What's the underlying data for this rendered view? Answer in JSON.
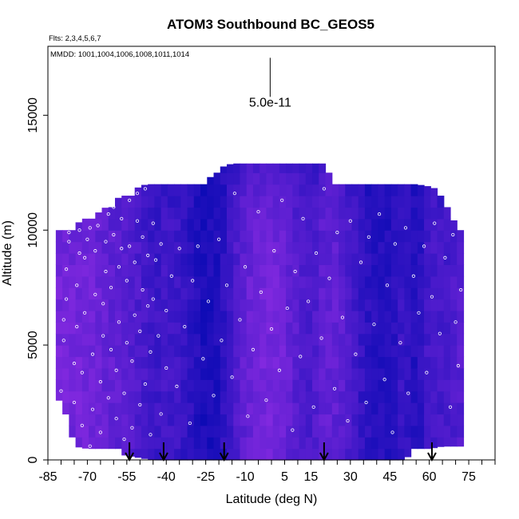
{
  "chart_data": {
    "type": "heatmap",
    "title": "ATOM3 Southbound BC_GEOS5",
    "flights_label": "Flts: 2,3,4,5,6,7",
    "dates_label": "MMDD: 1001,1004,1006,1008,1011,1014",
    "xlabel": "Latitude (deg N)",
    "ylabel": "Altitude (m)",
    "xlim": [
      -85,
      85
    ],
    "ylim": [
      0,
      18000
    ],
    "x_ticks": [
      -85,
      -70,
      -55,
      -40,
      -25,
      -10,
      5,
      15,
      30,
      45,
      60,
      75
    ],
    "x_tick_labels": [
      "-85",
      "-70",
      "-55",
      "-40",
      "-25",
      "-10",
      "5",
      "15",
      "30",
      "45",
      "60",
      "75"
    ],
    "y_ticks": [
      0,
      5000,
      10000,
      15000
    ],
    "y_tick_labels": [
      "0",
      "5000",
      "10000",
      "15000"
    ],
    "scale_value_label": "5.0e-11",
    "scale_bar": {
      "x": -0.5,
      "y_bottom": 15800,
      "y_top": 17500
    },
    "profile_arrows_lat": [
      -54,
      -41,
      -18,
      20,
      61
    ],
    "colors": {
      "low": "#0a0ab4",
      "high": "#8a2be2",
      "points": "#ffffff"
    },
    "column_tops": [
      [
        -80,
        10000
      ],
      [
        -75,
        10200
      ],
      [
        -70,
        10600
      ],
      [
        -65,
        10800
      ],
      [
        -60,
        11300
      ],
      [
        -55,
        11600
      ],
      [
        -50,
        11900
      ],
      [
        -45,
        12100
      ],
      [
        -40,
        12100
      ],
      [
        -35,
        12100
      ],
      [
        -30,
        12100
      ],
      [
        -25,
        12100
      ],
      [
        -20,
        12700
      ],
      [
        -15,
        12900
      ],
      [
        -10,
        12900
      ],
      [
        -5,
        12900
      ],
      [
        0,
        12900
      ],
      [
        5,
        12900
      ],
      [
        10,
        12900
      ],
      [
        15,
        12900
      ],
      [
        20,
        12900
      ],
      [
        25,
        12100
      ],
      [
        30,
        12000
      ],
      [
        35,
        12000
      ],
      [
        40,
        12000
      ],
      [
        45,
        12000
      ],
      [
        50,
        12000
      ],
      [
        55,
        12000
      ],
      [
        60,
        11900
      ],
      [
        65,
        11700
      ],
      [
        70,
        10200
      ],
      [
        72,
        10000
      ]
    ],
    "column_bottoms": [
      [
        -80,
        2600
      ],
      [
        -75,
        600
      ],
      [
        -70,
        500
      ],
      [
        -65,
        400
      ],
      [
        -60,
        300
      ],
      [
        -55,
        200
      ],
      [
        -50,
        100
      ],
      [
        -45,
        0
      ],
      [
        50,
        0
      ],
      [
        55,
        400
      ],
      [
        60,
        500
      ],
      [
        65,
        600
      ],
      [
        70,
        600
      ],
      [
        72,
        600
      ]
    ],
    "intensity_by_lat": [
      [
        -82,
        0.85
      ],
      [
        -70,
        0.82
      ],
      [
        -60,
        0.68
      ],
      [
        -55,
        0.62
      ],
      [
        -50,
        0.52
      ],
      [
        -45,
        0.38
      ],
      [
        -40,
        0.45
      ],
      [
        -35,
        0.4
      ],
      [
        -30,
        0.25
      ],
      [
        -25,
        0.12
      ],
      [
        -20,
        0.18
      ],
      [
        -15,
        0.48
      ],
      [
        -10,
        0.72
      ],
      [
        -5,
        0.82
      ],
      [
        0,
        0.85
      ],
      [
        5,
        0.78
      ],
      [
        10,
        0.58
      ],
      [
        15,
        0.5
      ],
      [
        20,
        0.7
      ],
      [
        25,
        0.68
      ],
      [
        30,
        0.5
      ],
      [
        35,
        0.3
      ],
      [
        40,
        0.22
      ],
      [
        45,
        0.2
      ],
      [
        50,
        0.38
      ],
      [
        55,
        0.18
      ],
      [
        60,
        0.5
      ],
      [
        65,
        0.45
      ],
      [
        70,
        0.55
      ],
      [
        73,
        0.6
      ]
    ],
    "intensity_by_alt": [
      [
        0,
        0.92
      ],
      [
        1000,
        0.95
      ],
      [
        2000,
        0.98
      ],
      [
        4000,
        1.0
      ],
      [
        7000,
        0.98
      ],
      [
        10000,
        0.92
      ],
      [
        12000,
        0.78
      ],
      [
        13000,
        0.62
      ]
    ],
    "observation_points": [
      [
        -80,
        1000
      ],
      [
        -80,
        3000
      ],
      [
        -79,
        5200
      ],
      [
        -79,
        6100
      ],
      [
        -78,
        7000
      ],
      [
        -78,
        8300
      ],
      [
        -77,
        9500
      ],
      [
        -77,
        9900
      ],
      [
        -75,
        2500
      ],
      [
        -75,
        4200
      ],
      [
        -74,
        5800
      ],
      [
        -74,
        7600
      ],
      [
        -73,
        9000
      ],
      [
        -73,
        10000
      ],
      [
        -72,
        1500
      ],
      [
        -72,
        3800
      ],
      [
        -71,
        6400
      ],
      [
        -71,
        8800
      ],
      [
        -70,
        9600
      ],
      [
        -69,
        10100
      ],
      [
        -69,
        600
      ],
      [
        -68,
        2200
      ],
      [
        -68,
        4600
      ],
      [
        -67,
        7200
      ],
      [
        -67,
        9100
      ],
      [
        -66,
        10200
      ],
      [
        -65,
        1200
      ],
      [
        -65,
        3400
      ],
      [
        -64,
        5400
      ],
      [
        -64,
        6800
      ],
      [
        -63,
        8200
      ],
      [
        -63,
        9500
      ],
      [
        -62,
        10700
      ],
      [
        -62,
        2700
      ],
      [
        -61,
        4800
      ],
      [
        -61,
        7500
      ],
      [
        -60,
        9800
      ],
      [
        -60,
        11000
      ],
      [
        -59,
        1800
      ],
      [
        -59,
        3900
      ],
      [
        -58,
        6000
      ],
      [
        -58,
        8400
      ],
      [
        -57,
        9200
      ],
      [
        -57,
        10500
      ],
      [
        -56,
        900
      ],
      [
        -56,
        2900
      ],
      [
        -55,
        5100
      ],
      [
        -55,
        7800
      ],
      [
        -54,
        9300
      ],
      [
        -54,
        11300
      ],
      [
        -53,
        1400
      ],
      [
        -53,
        4300
      ],
      [
        -52,
        6300
      ],
      [
        -52,
        8600
      ],
      [
        -51,
        10400
      ],
      [
        -51,
        11600
      ],
      [
        -50,
        2400
      ],
      [
        -50,
        5600
      ],
      [
        -49,
        7400
      ],
      [
        -49,
        9700
      ],
      [
        -48,
        11800
      ],
      [
        -48,
        3300
      ],
      [
        -47,
        6700
      ],
      [
        -47,
        8900
      ],
      [
        -46,
        1100
      ],
      [
        -46,
        4700
      ],
      [
        -45,
        10300
      ],
      [
        -45,
        7000
      ],
      [
        -44,
        8700
      ],
      [
        -43,
        5400
      ],
      [
        -42,
        2000
      ],
      [
        -42,
        9400
      ],
      [
        -40,
        4000
      ],
      [
        -40,
        6500
      ],
      [
        -38,
        8000
      ],
      [
        -36,
        3200
      ],
      [
        -35,
        9200
      ],
      [
        -33,
        5800
      ],
      [
        -31,
        1600
      ],
      [
        -30,
        7800
      ],
      [
        -28,
        9300
      ],
      [
        -26,
        4400
      ],
      [
        -24,
        6900
      ],
      [
        -22,
        2800
      ],
      [
        -20,
        9600
      ],
      [
        -19,
        5200
      ],
      [
        -17,
        7600
      ],
      [
        -15,
        3600
      ],
      [
        -14,
        11600
      ],
      [
        -12,
        6100
      ],
      [
        -10,
        8400
      ],
      [
        -9,
        1900
      ],
      [
        -7,
        4800
      ],
      [
        -5,
        10800
      ],
      [
        -4,
        7300
      ],
      [
        -2,
        2600
      ],
      [
        0,
        5700
      ],
      [
        1,
        9100
      ],
      [
        3,
        3900
      ],
      [
        4,
        11300
      ],
      [
        6,
        6600
      ],
      [
        8,
        1300
      ],
      [
        9,
        8200
      ],
      [
        11,
        4500
      ],
      [
        12,
        10500
      ],
      [
        14,
        6900
      ],
      [
        16,
        2300
      ],
      [
        17,
        9000
      ],
      [
        19,
        5300
      ],
      [
        20,
        11800
      ],
      [
        22,
        7900
      ],
      [
        24,
        3100
      ],
      [
        25,
        9900
      ],
      [
        27,
        6200
      ],
      [
        29,
        1700
      ],
      [
        30,
        10400
      ],
      [
        32,
        4600
      ],
      [
        34,
        8600
      ],
      [
        36,
        2500
      ],
      [
        37,
        9700
      ],
      [
        39,
        5900
      ],
      [
        41,
        10700
      ],
      [
        43,
        3500
      ],
      [
        44,
        7600
      ],
      [
        46,
        1200
      ],
      [
        47,
        9400
      ],
      [
        49,
        5100
      ],
      [
        51,
        10100
      ],
      [
        52,
        2900
      ],
      [
        54,
        8000
      ],
      [
        56,
        6400
      ],
      [
        58,
        9300
      ],
      [
        59,
        3800
      ],
      [
        61,
        7100
      ],
      [
        62,
        10300
      ],
      [
        64,
        5500
      ],
      [
        66,
        8800
      ],
      [
        68,
        2300
      ],
      [
        69,
        9800
      ],
      [
        70,
        6000
      ],
      [
        71,
        4100
      ],
      [
        72,
        7400
      ]
    ]
  }
}
